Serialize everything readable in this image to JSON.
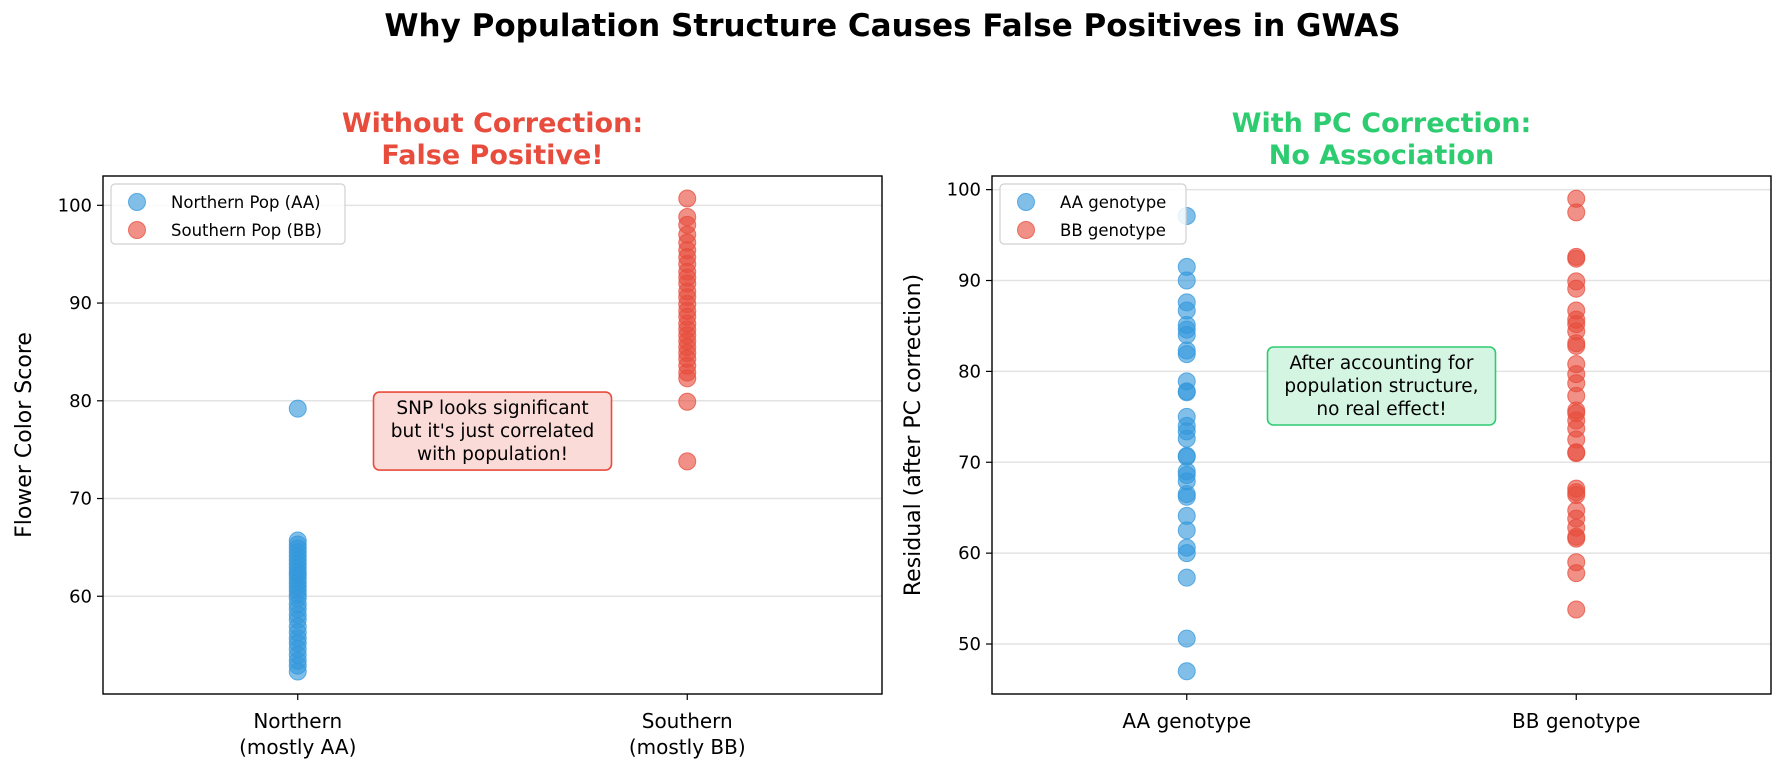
{
  "figure": {
    "title": "Why Population Structure Causes False Positives in GWAS"
  },
  "chart_data": [
    {
      "type": "scatter",
      "title_lines": [
        "Without Correction:",
        "False Positive!"
      ],
      "title_color": "#e74c3c",
      "xlabel": "",
      "ylabel": "Flower Color Score",
      "categories": [
        {
          "lines": [
            "Northern",
            "(mostly AA)"
          ]
        },
        {
          "lines": [
            "Southern",
            "(mostly BB)"
          ]
        }
      ],
      "ylim": [
        50,
        103
      ],
      "yticks": [
        60,
        70,
        80,
        90,
        100
      ],
      "grid": "y",
      "legend_position": "top-left",
      "series": [
        {
          "name": "Northern Pop (AA)",
          "color": "#3498db",
          "category_index": 0,
          "values": [
            79.2,
            65.7,
            65.3,
            64.9,
            64.5,
            64.1,
            63.7,
            63.3,
            62.9,
            62.5,
            62.2,
            61.8,
            61.4,
            61.0,
            60.6,
            60.2,
            59.8,
            59.2,
            58.7,
            58.1,
            57.6,
            56.9,
            56.3,
            55.7,
            55.2,
            54.6,
            54.0,
            53.4,
            52.9,
            52.3
          ]
        },
        {
          "name": "Southern Pop (BB)",
          "color": "#e74c3c",
          "category_index": 1,
          "values": [
            100.7,
            98.8,
            98.0,
            97.0,
            96.2,
            95.4,
            94.7,
            94.0,
            93.2,
            92.6,
            92.0,
            91.2,
            90.6,
            89.9,
            89.2,
            88.6,
            87.9,
            87.3,
            86.7,
            86.1,
            85.5,
            84.9,
            84.3,
            83.6,
            82.9,
            82.3,
            79.9,
            73.8
          ]
        }
      ],
      "annotation": {
        "lines": [
          "SNP looks significant",
          "but it's just correlated",
          "with population!"
        ],
        "border_color": "#e74c3c",
        "fill_color": "#fadbd8"
      }
    },
    {
      "type": "scatter",
      "title_lines": [
        "With PC Correction:",
        "No Association"
      ],
      "title_color": "#2ecc71",
      "xlabel": "",
      "ylabel": "Residual (after PC correction)",
      "categories": [
        {
          "lines": [
            "AA genotype"
          ]
        },
        {
          "lines": [
            "BB genotype"
          ]
        }
      ],
      "ylim": [
        44.5,
        101.5
      ],
      "yticks": [
        50,
        60,
        70,
        80,
        90,
        100
      ],
      "grid": "y",
      "legend_position": "top-left",
      "series": [
        {
          "name": "AA genotype",
          "color": "#3498db",
          "category_index": 0,
          "values": [
            97.1,
            91.5,
            90.0,
            87.6,
            86.7,
            85.1,
            84.6,
            84.0,
            82.3,
            81.9,
            78.9,
            77.8,
            77.7,
            75.0,
            74.0,
            73.4,
            72.6,
            70.7,
            70.6,
            69.0,
            68.6,
            67.9,
            66.5,
            66.2,
            64.1,
            62.5,
            60.6,
            60.0,
            57.3,
            50.6,
            47.0
          ]
        },
        {
          "name": "BB genotype",
          "color": "#e74c3c",
          "category_index": 1,
          "values": [
            99.0,
            97.5,
            92.6,
            92.4,
            89.9,
            89.1,
            86.7,
            85.7,
            85.2,
            84.4,
            83.1,
            82.8,
            80.8,
            79.7,
            78.7,
            77.3,
            75.7,
            75.4,
            74.6,
            73.7,
            72.5,
            71.1,
            71.0,
            67.1,
            66.7,
            66.4,
            64.7,
            63.8,
            62.8,
            61.8,
            61.6,
            59.0,
            57.8,
            53.8
          ]
        }
      ],
      "annotation": {
        "lines": [
          "After accounting for",
          "population structure,",
          "no real effect!"
        ],
        "border_color": "#2ecc71",
        "fill_color": "#d5f5e3"
      }
    }
  ]
}
